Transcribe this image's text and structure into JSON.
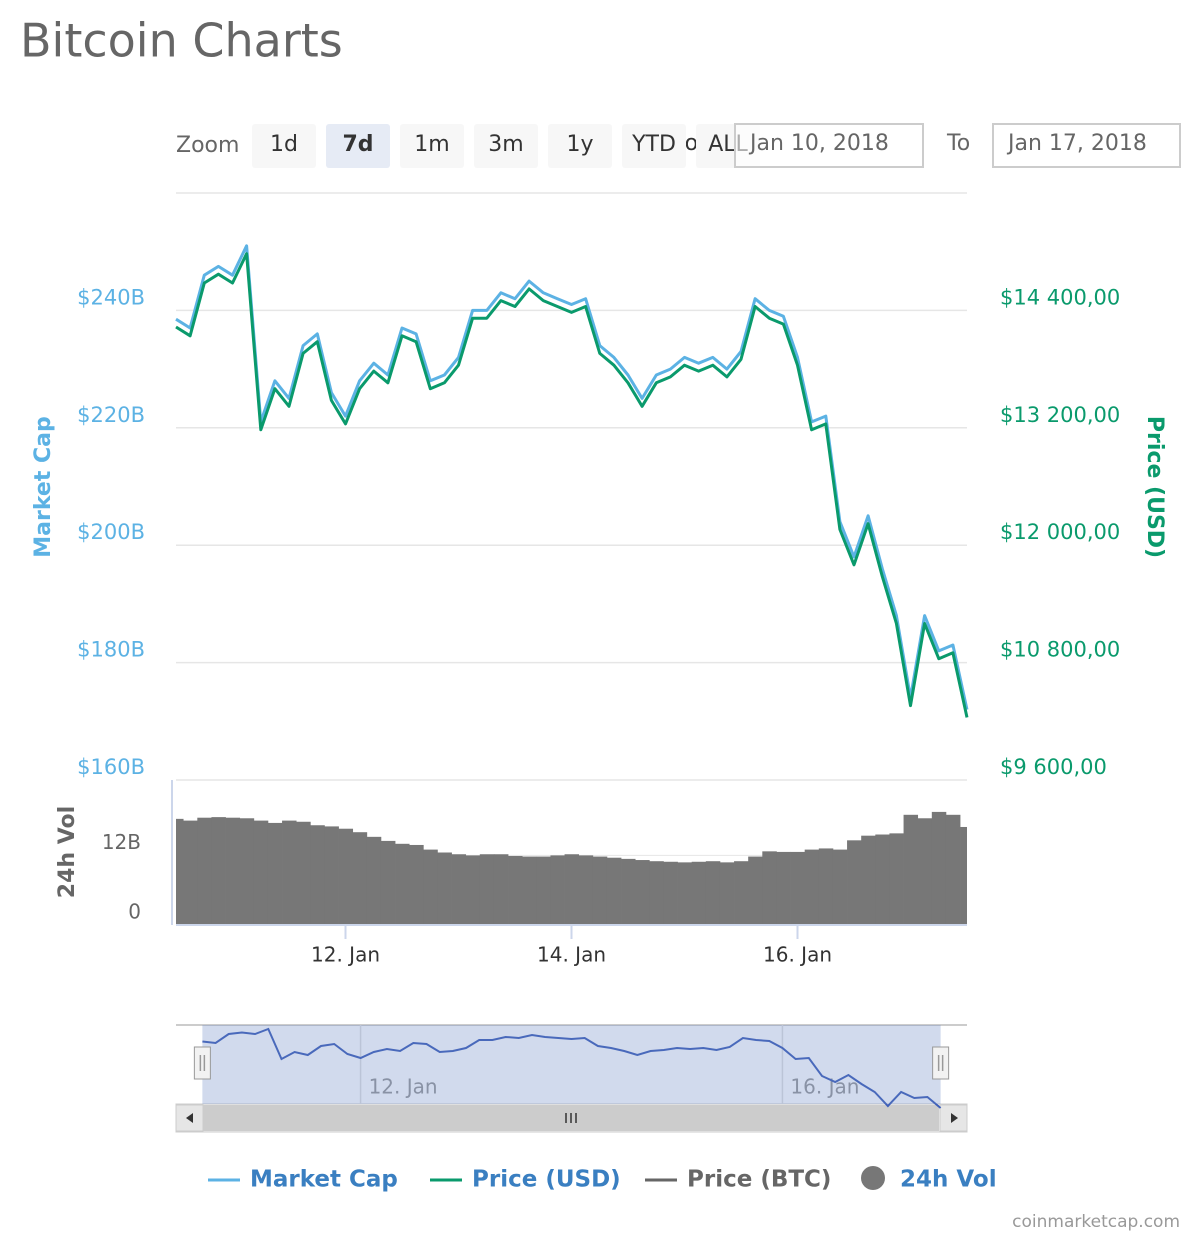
{
  "title": "Bitcoin Charts",
  "zoom": {
    "label": "Zoom",
    "buttons": [
      "1d",
      "7d",
      "1m",
      "3m",
      "1y",
      "YTD",
      "ALL"
    ],
    "selected_index": 1
  },
  "range": {
    "from_label": "From",
    "from": "Jan 10, 2018",
    "to_label": "To",
    "to": "Jan 17, 2018"
  },
  "chart_data": {
    "type": "line",
    "x": [
      10.5,
      10.625,
      10.75,
      10.875,
      11,
      11.125,
      11.25,
      11.375,
      11.5,
      11.625,
      11.75,
      11.875,
      12,
      12.125,
      12.25,
      12.375,
      12.5,
      12.625,
      12.75,
      12.875,
      13,
      13.125,
      13.25,
      13.375,
      13.5,
      13.625,
      13.75,
      13.875,
      14,
      14.125,
      14.25,
      14.375,
      14.5,
      14.625,
      14.75,
      14.875,
      15,
      15.125,
      15.25,
      15.375,
      15.5,
      15.625,
      15.75,
      15.875,
      16,
      16.125,
      16.25,
      16.375,
      16.5,
      16.625,
      16.75,
      16.875,
      17,
      17.125,
      17.25,
      17.375,
      17.5
    ],
    "xlim": [
      10.5,
      17.5
    ],
    "xticks": [
      {
        "value": 12,
        "label": "12. Jan"
      },
      {
        "value": 14,
        "label": "14. Jan"
      },
      {
        "value": 16,
        "label": "16. Jan"
      }
    ],
    "ylabel": "Market Cap",
    "ylim": [
      160,
      260
    ],
    "yticks": [
      {
        "value": 160,
        "label": "$160B"
      },
      {
        "value": 180,
        "label": "$180B"
      },
      {
        "value": 200,
        "label": "$200B"
      },
      {
        "value": 220,
        "label": "$220B"
      },
      {
        "value": 240,
        "label": "$240B"
      }
    ],
    "y2label": "Price (USD)",
    "y2lim": [
      9600,
      15600
    ],
    "y2ticks": [
      {
        "value": 9600,
        "label": "$9 600,00"
      },
      {
        "value": 10800,
        "label": "$10 800,00"
      },
      {
        "value": 12000,
        "label": "$12 000,00"
      },
      {
        "value": 13200,
        "label": "$13 200,00"
      },
      {
        "value": 14400,
        "label": "$14 400,00"
      }
    ],
    "vol_label": "24h Vol",
    "vol_lim": [
      0,
      25
    ],
    "vol_ticks": [
      0,
      {
        "value": 12,
        "label": "12B"
      }
    ],
    "grid": true,
    "series": [
      {
        "name": "Market Cap",
        "color": "#5cb2e4",
        "values": [
          238.5,
          237,
          246,
          247.5,
          246,
          251,
          221,
          228,
          225,
          234,
          236,
          226,
          222,
          228,
          231,
          229,
          237,
          236,
          228,
          229,
          232,
          240,
          240,
          243,
          242,
          245,
          243,
          242,
          241,
          242,
          234,
          232,
          229,
          225,
          229,
          230,
          232,
          231,
          232,
          230,
          233,
          242,
          240,
          239,
          232,
          221,
          222,
          204,
          198,
          205,
          196,
          188,
          174,
          188,
          182,
          183,
          172
        ]
      },
      {
        "name": "Price (USD)",
        "color": "#0a9a6c",
        "axis": "y2",
        "values": [
          14230,
          14140,
          14680,
          14770,
          14680,
          14980,
          13180,
          13600,
          13420,
          13960,
          14080,
          13480,
          13240,
          13600,
          13780,
          13660,
          14140,
          14080,
          13600,
          13660,
          13840,
          14320,
          14320,
          14500,
          14440,
          14620,
          14500,
          14440,
          14380,
          14440,
          13960,
          13840,
          13660,
          13420,
          13660,
          13720,
          13840,
          13780,
          13840,
          13720,
          13900,
          14440,
          14320,
          14260,
          13840,
          13180,
          13240,
          12160,
          11800,
          12220,
          11680,
          11200,
          10360,
          11200,
          10840,
          10900,
          10240
        ]
      },
      {
        "name": "Price (BTC)",
        "color": "#666666",
        "visible": false
      },
      {
        "name": "24h Vol",
        "color": "#777777",
        "type": "column",
        "axis": "vol",
        "values": [
          18.3,
          18.0,
          18.5,
          18.6,
          18.5,
          18.4,
          18.0,
          17.6,
          18.0,
          17.8,
          17.2,
          17.0,
          16.6,
          16.0,
          15.2,
          14.5,
          14.0,
          13.8,
          13.0,
          12.5,
          12.2,
          12.0,
          12.2,
          12.2,
          11.9,
          11.8,
          11.8,
          12.0,
          12.2,
          12.0,
          11.8,
          11.6,
          11.4,
          11.2,
          11.0,
          10.9,
          10.8,
          10.9,
          11.0,
          10.8,
          11.0,
          11.8,
          12.7,
          12.6,
          12.6,
          13.0,
          13.2,
          13.0,
          14.6,
          15.4,
          15.6,
          15.8,
          19.0,
          18.4,
          19.5,
          19.0,
          16.9
        ]
      }
    ],
    "navigator": {
      "xlim": [
        10.25,
        17.75
      ],
      "xticks": [
        {
          "value": 12,
          "label": "12. Jan"
        },
        {
          "value": 16,
          "label": "16. Jan"
        }
      ]
    }
  },
  "credit": "coinmarketcap.com"
}
